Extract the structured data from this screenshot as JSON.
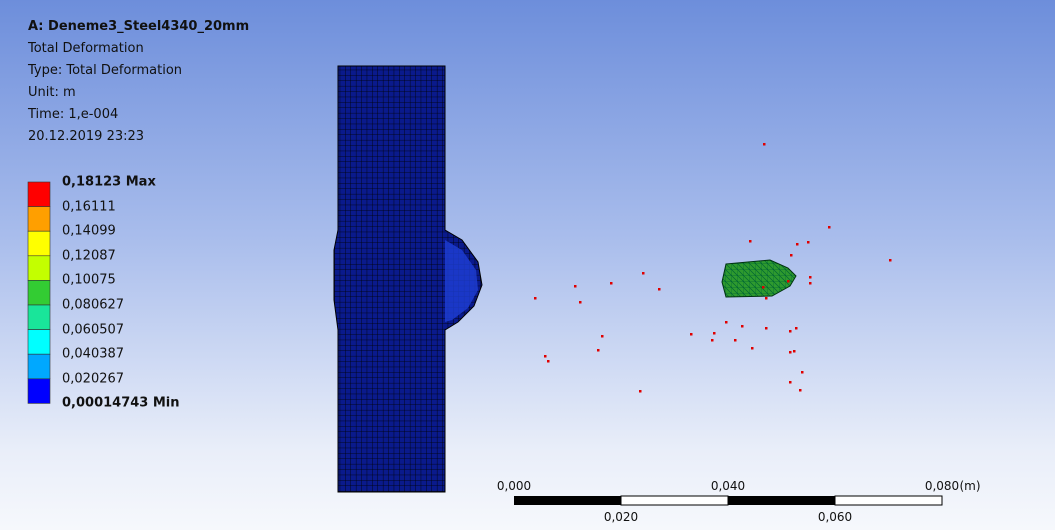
{
  "header": {
    "title": "A: Deneme3_Steel4340_20mm",
    "lines": [
      "Total Deformation",
      "Type: Total Deformation",
      "Unit: m",
      "Time: 1,e-004",
      "20.12.2019 23:23"
    ]
  },
  "legend": {
    "labels": [
      "0,18123 Max",
      "0,16111",
      "0,14099",
      "0,12087",
      "0,10075",
      "0,080627",
      "0,060507",
      "0,040387",
      "0,020267",
      "0,00014743 Min"
    ],
    "colors": [
      "#ff0000",
      "#ff9f00",
      "#ffff00",
      "#c3ff00",
      "#33cc33",
      "#19e59a",
      "#00ffff",
      "#00a8ff",
      "#0000ff"
    ]
  },
  "scale_bar": {
    "top_labels": [
      "0,000",
      "0,040",
      "0,080"
    ],
    "bottom_labels": [
      "0,020",
      "0,060"
    ],
    "unit": "(m)"
  }
}
